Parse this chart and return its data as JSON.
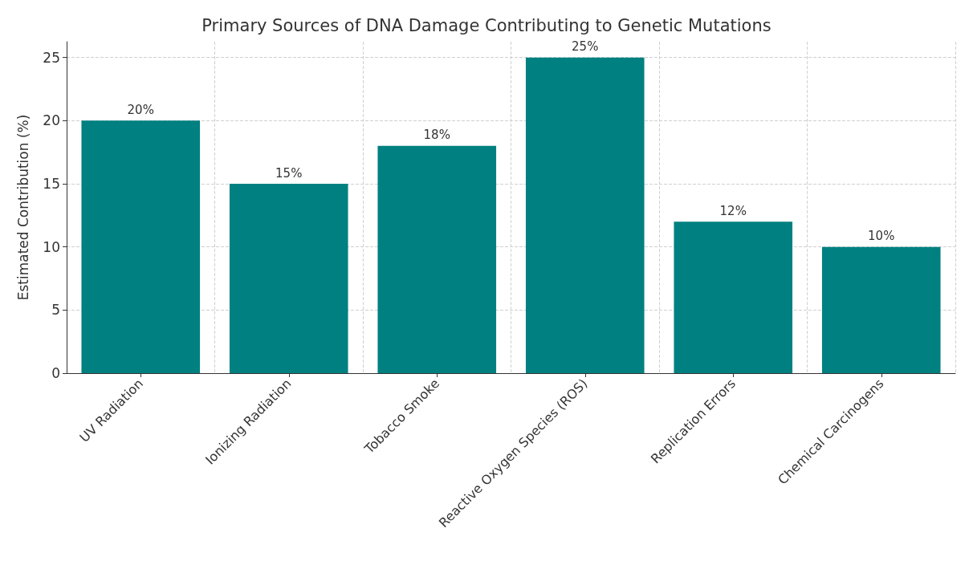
{
  "chart_data": {
    "type": "bar",
    "title": "Primary Sources of DNA Damage Contributing to Genetic Mutations",
    "ylabel": "Estimated Contribution (%)",
    "categories": [
      "UV Radiation",
      "Ionizing Radiation",
      "Tobacco Smoke",
      "Reactive Oxygen Species (ROS)",
      "Replication Errors",
      "Chemical Carcinogens"
    ],
    "values": [
      20,
      15,
      18,
      25,
      12,
      10
    ],
    "value_labels": [
      "20%",
      "15%",
      "18%",
      "25%",
      "12%",
      "10%"
    ],
    "color": "#008080",
    "ylim": [
      0,
      26.25
    ],
    "yticks": [
      0,
      5,
      10,
      15,
      20,
      25
    ],
    "grid": true
  }
}
